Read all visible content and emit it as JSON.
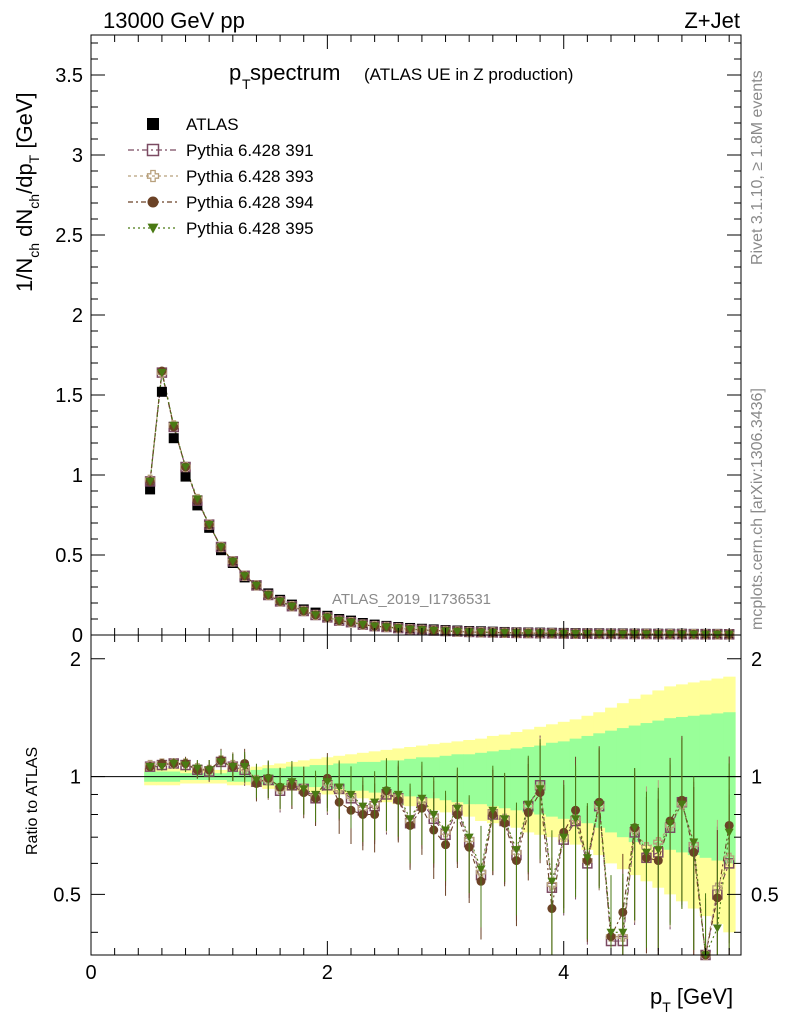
{
  "header": {
    "left": "13000 GeV pp",
    "right": "Z+Jet",
    "title_main": "p",
    "title_sub": "T",
    "title_rest": " spectrum",
    "title_paren": "(ATLAS UE in Z production)"
  },
  "side": {
    "rivet": "Rivet 3.1.10, ≥ 1.8M events",
    "mcplots": "mcplots.cern.ch [arXiv:1306.3436]"
  },
  "watermark": "ATLAS_2019_I1736531",
  "axes": {
    "ylabel_top": "1/N_ch dN_ch/dp_T [GeV]",
    "ylabel_bottom": "Ratio to ATLAS",
    "xlabel": "p_T [GeV]",
    "top_yticks": [
      "0",
      "0.5",
      "1",
      "1.5",
      "2",
      "2.5",
      "3",
      "3.5"
    ],
    "bottom_yticks": [
      "0.5",
      "1",
      "2"
    ],
    "xticks": [
      "0",
      "2",
      "4"
    ]
  },
  "legend": [
    {
      "label": "ATLAS",
      "marker": "filled-square",
      "color": "#000000"
    },
    {
      "label": "Pythia 6.428 391",
      "marker": "open-square",
      "color": "#7b4a62"
    },
    {
      "label": "Pythia 6.428 393",
      "marker": "open-cross",
      "color": "#b8a07c"
    },
    {
      "label": "Pythia 6.428 394",
      "marker": "filled-circle",
      "color": "#6b4226"
    },
    {
      "label": "Pythia 6.428 395",
      "marker": "filled-triangle-down",
      "color": "#4a7a14"
    }
  ],
  "chart_data": {
    "type": "scatter",
    "xlabel": "p_T [GeV]",
    "ylabel": "1/N_ch dN_ch/dp_T [GeV]",
    "xlim": [
      0,
      5.5
    ],
    "ylim": [
      0,
      3.75
    ],
    "ratio_ylim": [
      0.35,
      2.3
    ],
    "ratio_scale": "log",
    "x": [
      0.5,
      0.6,
      0.7,
      0.8,
      0.9,
      1.0,
      1.1,
      1.2,
      1.3,
      1.4,
      1.5,
      1.6,
      1.7,
      1.8,
      1.9,
      2.0,
      2.1,
      2.2,
      2.3,
      2.4,
      2.5,
      2.6,
      2.7,
      2.8,
      2.9,
      3.0,
      3.1,
      3.2,
      3.3,
      3.4,
      3.5,
      3.6,
      3.7,
      3.8,
      3.9,
      4.0,
      4.1,
      4.2,
      4.3,
      4.4,
      4.5,
      4.6,
      4.7,
      4.8,
      4.9,
      5.0,
      5.1,
      5.2,
      5.3,
      5.4
    ],
    "series": [
      {
        "name": "ATLAS",
        "values": [
          0.91,
          1.52,
          1.23,
          0.99,
          0.81,
          0.67,
          0.53,
          0.45,
          0.36,
          0.31,
          0.26,
          0.22,
          0.19,
          0.16,
          0.14,
          0.12,
          0.1,
          0.09,
          0.075,
          0.065,
          0.057,
          0.05,
          0.044,
          0.039,
          0.035,
          0.031,
          0.028,
          0.025,
          0.023,
          0.021,
          0.019,
          0.017,
          0.016,
          0.015,
          0.014,
          0.013,
          0.012,
          0.011,
          0.011,
          0.01,
          0.01,
          0.009,
          0.009,
          0.008,
          0.008,
          0.008,
          0.007,
          0.007,
          0.007,
          0.006
        ]
      },
      {
        "name": "Pythia 6.428 391",
        "values": [
          0.96,
          1.64,
          1.3,
          1.05,
          0.84,
          0.69,
          0.55,
          0.46,
          0.37,
          0.31,
          0.25,
          0.21,
          0.18,
          0.15,
          0.125,
          0.11,
          0.09,
          0.08,
          0.065,
          0.055,
          0.05,
          0.043,
          0.036,
          0.032,
          0.028,
          0.025,
          0.022,
          0.019,
          0.017,
          0.016,
          0.014,
          0.013,
          0.012,
          0.011,
          0.01,
          0.009,
          0.008,
          0.008,
          0.007,
          0.007,
          0.006,
          0.006,
          0.006,
          0.005,
          0.005,
          0.005,
          0.005,
          0.004,
          0.004,
          0.004
        ]
      },
      {
        "name": "Pythia 6.428 393",
        "values": [
          0.97,
          1.64,
          1.31,
          1.05,
          0.85,
          0.69,
          0.55,
          0.46,
          0.37,
          0.31,
          0.25,
          0.21,
          0.18,
          0.15,
          0.125,
          0.11,
          0.09,
          0.08,
          0.065,
          0.056,
          0.05,
          0.043,
          0.036,
          0.032,
          0.028,
          0.025,
          0.022,
          0.019,
          0.017,
          0.016,
          0.014,
          0.013,
          0.012,
          0.011,
          0.01,
          0.009,
          0.008,
          0.008,
          0.007,
          0.007,
          0.006,
          0.006,
          0.006,
          0.005,
          0.005,
          0.005,
          0.005,
          0.004,
          0.004,
          0.004
        ]
      },
      {
        "name": "Pythia 6.428 394",
        "values": [
          0.96,
          1.65,
          1.3,
          1.05,
          0.84,
          0.69,
          0.55,
          0.46,
          0.37,
          0.31,
          0.25,
          0.21,
          0.18,
          0.15,
          0.125,
          0.11,
          0.09,
          0.08,
          0.065,
          0.055,
          0.05,
          0.043,
          0.036,
          0.032,
          0.028,
          0.025,
          0.022,
          0.019,
          0.017,
          0.016,
          0.014,
          0.013,
          0.012,
          0.011,
          0.01,
          0.009,
          0.008,
          0.008,
          0.007,
          0.007,
          0.006,
          0.006,
          0.006,
          0.005,
          0.005,
          0.005,
          0.005,
          0.004,
          0.004,
          0.004
        ]
      },
      {
        "name": "Pythia 6.428 395",
        "values": [
          0.96,
          1.64,
          1.31,
          1.05,
          0.85,
          0.69,
          0.55,
          0.46,
          0.37,
          0.31,
          0.25,
          0.21,
          0.18,
          0.15,
          0.125,
          0.11,
          0.09,
          0.08,
          0.066,
          0.056,
          0.05,
          0.043,
          0.036,
          0.032,
          0.028,
          0.025,
          0.022,
          0.019,
          0.017,
          0.016,
          0.014,
          0.013,
          0.012,
          0.011,
          0.01,
          0.009,
          0.008,
          0.008,
          0.007,
          0.007,
          0.006,
          0.006,
          0.006,
          0.005,
          0.005,
          0.005,
          0.005,
          0.004,
          0.004,
          0.004
        ]
      }
    ],
    "ratio_series": [
      {
        "name": "Pythia 6.428 391",
        "values": [
          1.06,
          1.07,
          1.08,
          1.07,
          1.04,
          1.03,
          1.09,
          1.06,
          1.04,
          0.97,
          0.98,
          0.92,
          0.95,
          0.93,
          0.88,
          0.95,
          0.93,
          0.88,
          0.82,
          0.84,
          0.9,
          0.88,
          0.76,
          0.86,
          0.78,
          0.71,
          0.82,
          0.68,
          0.56,
          0.8,
          0.77,
          0.63,
          0.84,
          0.95,
          0.52,
          0.69,
          0.77,
          0.6,
          0.84,
          0.38,
          0.38,
          0.72,
          0.62,
          0.64,
          0.74,
          0.86,
          0.66,
          0.32,
          0.5,
          0.6
        ]
      },
      {
        "name": "Pythia 6.428 393",
        "values": [
          1.07,
          1.08,
          1.08,
          1.08,
          1.05,
          1.04,
          1.1,
          1.07,
          1.05,
          0.98,
          0.98,
          0.93,
          0.96,
          0.93,
          0.89,
          0.96,
          0.93,
          0.89,
          0.83,
          0.85,
          0.91,
          0.89,
          0.77,
          0.87,
          0.79,
          0.72,
          0.83,
          0.69,
          0.57,
          0.81,
          0.78,
          0.64,
          0.84,
          0.94,
          0.53,
          0.7,
          0.78,
          0.61,
          0.84,
          0.39,
          0.39,
          0.73,
          0.66,
          0.68,
          0.75,
          0.85,
          0.67,
          0.33,
          0.52,
          0.62
        ]
      },
      {
        "name": "Pythia 6.428 394",
        "values": [
          1.06,
          1.08,
          1.08,
          1.08,
          1.04,
          1.04,
          1.1,
          1.06,
          1.08,
          0.96,
          0.99,
          0.94,
          0.95,
          0.91,
          0.88,
          0.99,
          0.86,
          0.82,
          0.8,
          0.8,
          0.92,
          0.87,
          0.75,
          0.83,
          0.73,
          0.67,
          0.8,
          0.66,
          0.54,
          0.8,
          0.76,
          0.61,
          0.81,
          0.91,
          0.46,
          0.72,
          0.82,
          0.61,
          0.86,
          0.39,
          0.45,
          0.74,
          0.62,
          0.61,
          0.77,
          0.87,
          0.64,
          0.33,
          0.49,
          0.75
        ]
      },
      {
        "name": "Pythia 6.428 395",
        "values": [
          1.06,
          1.06,
          1.08,
          1.07,
          1.05,
          1.04,
          1.09,
          1.06,
          1.06,
          0.98,
          0.99,
          0.94,
          0.97,
          0.93,
          0.9,
          0.97,
          0.94,
          0.9,
          0.84,
          0.86,
          0.92,
          0.9,
          0.78,
          0.88,
          0.8,
          0.73,
          0.83,
          0.7,
          0.58,
          0.82,
          0.78,
          0.65,
          0.85,
          0.93,
          0.54,
          0.7,
          0.78,
          0.62,
          0.85,
          0.4,
          0.4,
          0.74,
          0.64,
          0.65,
          0.76,
          0.85,
          0.68,
          0.34,
          0.41,
          0.72
        ]
      }
    ],
    "ratio_band_yellow": {
      "lo": [
        0.95,
        0.95,
        0.95,
        0.96,
        0.96,
        0.96,
        0.96,
        0.95,
        0.95,
        0.94,
        0.93,
        0.93,
        0.92,
        0.92,
        0.91,
        0.9,
        0.9,
        0.89,
        0.88,
        0.87,
        0.86,
        0.85,
        0.84,
        0.83,
        0.82,
        0.81,
        0.8,
        0.79,
        0.77,
        0.76,
        0.75,
        0.74,
        0.72,
        0.71,
        0.7,
        0.68,
        0.67,
        0.65,
        0.63,
        0.6,
        0.58,
        0.56,
        0.54,
        0.52,
        0.5,
        0.48,
        0.46,
        0.44,
        0.42,
        0.4
      ],
      "hi": [
        1.05,
        1.05,
        1.05,
        1.04,
        1.04,
        1.04,
        1.04,
        1.05,
        1.05,
        1.06,
        1.07,
        1.08,
        1.09,
        1.1,
        1.11,
        1.12,
        1.13,
        1.14,
        1.15,
        1.16,
        1.17,
        1.18,
        1.19,
        1.2,
        1.21,
        1.22,
        1.23,
        1.24,
        1.25,
        1.27,
        1.28,
        1.3,
        1.32,
        1.34,
        1.36,
        1.38,
        1.4,
        1.43,
        1.46,
        1.5,
        1.54,
        1.58,
        1.62,
        1.66,
        1.7,
        1.72,
        1.74,
        1.76,
        1.78,
        1.8
      ]
    },
    "ratio_band_green": {
      "lo": [
        0.97,
        0.97,
        0.97,
        0.98,
        0.98,
        0.98,
        0.98,
        0.97,
        0.97,
        0.96,
        0.95,
        0.95,
        0.95,
        0.94,
        0.94,
        0.93,
        0.93,
        0.92,
        0.92,
        0.91,
        0.91,
        0.9,
        0.89,
        0.88,
        0.88,
        0.87,
        0.86,
        0.85,
        0.85,
        0.84,
        0.83,
        0.82,
        0.81,
        0.8,
        0.79,
        0.78,
        0.77,
        0.76,
        0.74,
        0.72,
        0.7,
        0.68,
        0.67,
        0.66,
        0.65,
        0.64,
        0.63,
        0.62,
        0.61,
        0.6
      ],
      "hi": [
        1.03,
        1.03,
        1.03,
        1.02,
        1.02,
        1.02,
        1.02,
        1.03,
        1.03,
        1.04,
        1.05,
        1.05,
        1.06,
        1.06,
        1.07,
        1.07,
        1.08,
        1.08,
        1.09,
        1.09,
        1.1,
        1.1,
        1.11,
        1.12,
        1.12,
        1.13,
        1.14,
        1.14,
        1.15,
        1.16,
        1.17,
        1.18,
        1.19,
        1.2,
        1.22,
        1.23,
        1.25,
        1.27,
        1.29,
        1.31,
        1.33,
        1.35,
        1.37,
        1.39,
        1.41,
        1.42,
        1.43,
        1.44,
        1.45,
        1.46
      ]
    },
    "colors": {
      "data": "#000000",
      "band_yellow": "#ffff99",
      "band_green": "#99ff99"
    }
  }
}
